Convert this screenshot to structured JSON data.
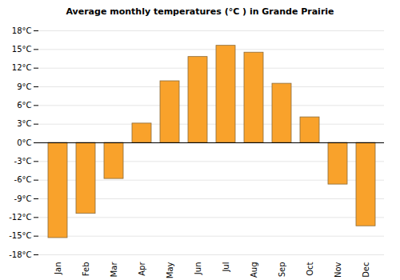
{
  "chart_data": {
    "type": "bar",
    "title": "Average monthly temperatures (°C ) in Grande Prairie",
    "categories": [
      "Jan",
      "Feb",
      "Mar",
      "Apr",
      "May",
      "Jun",
      "Jul",
      "Aug",
      "Sep",
      "Oct",
      "Nov",
      "Dec"
    ],
    "values": [
      -15.3,
      -11.4,
      -5.8,
      3.1,
      9.9,
      13.8,
      15.6,
      14.5,
      9.5,
      4.1,
      -6.7,
      -13.4
    ],
    "color": "#f9a22b",
    "ylim": [
      -18,
      18
    ],
    "yticks": [
      {
        "value": -18,
        "label": "-18°C"
      },
      {
        "value": -15,
        "label": "-15°C"
      },
      {
        "value": -12,
        "label": "-12°C"
      },
      {
        "value": -9,
        "label": "-9°C"
      },
      {
        "value": -6,
        "label": "-6°C"
      },
      {
        "value": -3,
        "label": "-3°C"
      },
      {
        "value": 0,
        "label": "0°C"
      },
      {
        "value": 3,
        "label": "3°C"
      },
      {
        "value": 6,
        "label": "6°C"
      },
      {
        "value": 9,
        "label": "9°C"
      },
      {
        "value": 12,
        "label": "12°C"
      },
      {
        "value": 15,
        "label": "15°C"
      },
      {
        "value": 18,
        "label": "18°C"
      }
    ],
    "grid": true
  }
}
